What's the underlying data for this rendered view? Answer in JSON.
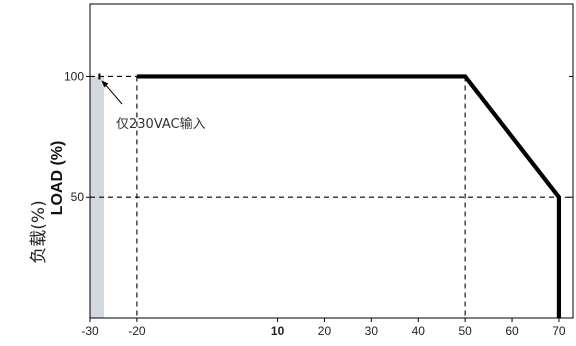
{
  "chart_data": {
    "type": "line",
    "title": "",
    "xlabel": "",
    "ylabel": "负载(%)",
    "ylabel_en": "LOAD (%)",
    "xlim": [
      -30,
      73
    ],
    "ylim": [
      0,
      130
    ],
    "x_ticks": [
      "-30",
      "-20",
      "10",
      "20",
      "30",
      "40",
      "50",
      "60",
      "70"
    ],
    "x_tick_values": [
      -30,
      -20,
      10,
      20,
      30,
      40,
      50,
      60,
      70
    ],
    "bold_ticks": [
      "10"
    ],
    "y_ticks": [
      "100",
      "50"
    ],
    "y_tick_values": [
      100,
      50
    ],
    "series": [
      {
        "x": [
          -20,
          50,
          70,
          70
        ],
        "y": [
          100,
          100,
          50,
          0
        ],
        "color": "#000000"
      }
    ],
    "shaded_region": {
      "x": [
        -30,
        -27
      ],
      "color": "#d3d8e1"
    },
    "annotation": {
      "text": "仅230VAC输入",
      "x": -28,
      "y": 100
    },
    "grid": false
  }
}
